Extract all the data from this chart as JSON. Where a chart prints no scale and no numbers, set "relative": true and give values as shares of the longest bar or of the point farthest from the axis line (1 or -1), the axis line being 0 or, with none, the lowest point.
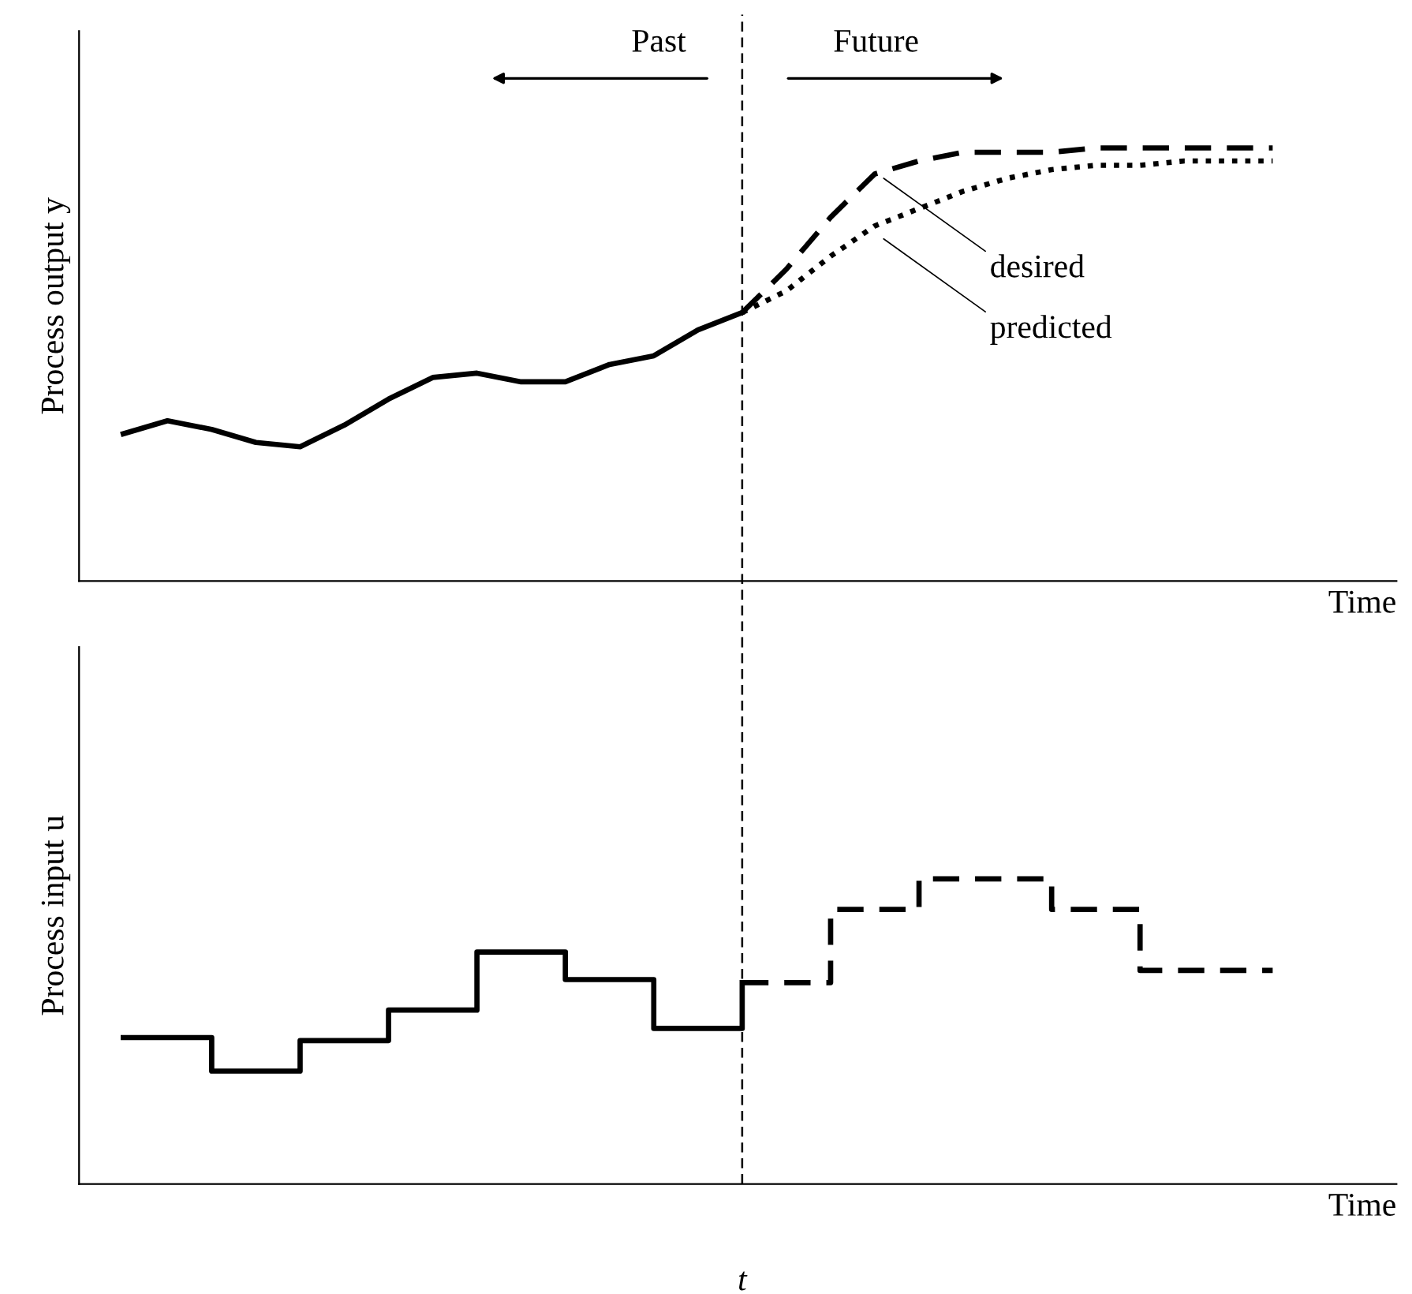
{
  "chart_data": [
    {
      "type": "line",
      "relative": true,
      "tick_labels": false,
      "xlabel": "Time",
      "ylabel": "Process output y",
      "categories": [
        null,
        null,
        null,
        null,
        null,
        null,
        null,
        null,
        null,
        null,
        null,
        null,
        null,
        null,
        null,
        null,
        null,
        null,
        null,
        null,
        null,
        null,
        null,
        null,
        null,
        null,
        null
      ],
      "series": [
        {
          "color": "#000000",
          "line_style": "solid",
          "values": [
            0.34,
            0.37,
            0.35,
            0.32,
            0.31,
            0.36,
            0.42,
            0.47,
            0.48,
            0.46,
            0.46,
            0.5,
            0.52,
            0.58,
            0.62,
            null,
            null,
            null,
            null,
            null,
            null,
            null,
            null,
            null,
            null,
            null,
            null
          ]
        },
        {
          "color": "#000000",
          "line_style": "dashed",
          "values": [
            null,
            null,
            null,
            null,
            null,
            null,
            null,
            null,
            null,
            null,
            null,
            null,
            null,
            null,
            0.62,
            0.72,
            0.84,
            0.94,
            0.97,
            0.99,
            0.99,
            0.99,
            1.0,
            1.0,
            1.0,
            1.0,
            1.0
          ]
        },
        {
          "color": "#000000",
          "line_style": "dotted",
          "values": [
            null,
            null,
            null,
            null,
            null,
            null,
            null,
            null,
            null,
            null,
            null,
            null,
            null,
            null,
            0.62,
            0.67,
            0.75,
            0.82,
            0.86,
            0.9,
            0.93,
            0.95,
            0.96,
            0.96,
            0.97,
            0.97,
            0.97
          ]
        }
      ],
      "annotations": [
        "Past",
        "Future",
        "desired",
        "predicted"
      ]
    },
    {
      "type": "step",
      "relative": true,
      "tick_labels": false,
      "xlabel": "Time",
      "ylabel": "Process input u",
      "categories": [
        null,
        null,
        null,
        null,
        null,
        null,
        null,
        null,
        null,
        null,
        null,
        null,
        null,
        null,
        null,
        null,
        null,
        null,
        null,
        null,
        null,
        null,
        null,
        null,
        null,
        null,
        null
      ],
      "series": [
        {
          "color": "#000000",
          "line_style": "solid",
          "values": [
            0.48,
            0.48,
            0.37,
            0.37,
            0.47,
            0.47,
            0.57,
            0.57,
            0.76,
            0.76,
            0.67,
            0.67,
            0.51,
            0.51,
            0.66,
            null,
            null,
            null,
            null,
            null,
            null,
            null,
            null,
            null,
            null,
            null,
            null
          ]
        },
        {
          "color": "#000000",
          "line_style": "dashed",
          "values": [
            null,
            null,
            null,
            null,
            null,
            null,
            null,
            null,
            null,
            null,
            null,
            null,
            null,
            null,
            0.66,
            0.66,
            0.9,
            0.9,
            1.0,
            1.0,
            1.0,
            0.9,
            0.9,
            0.7,
            0.7,
            0.7,
            0.7
          ]
        }
      ],
      "annotations": [
        "t"
      ]
    }
  ]
}
